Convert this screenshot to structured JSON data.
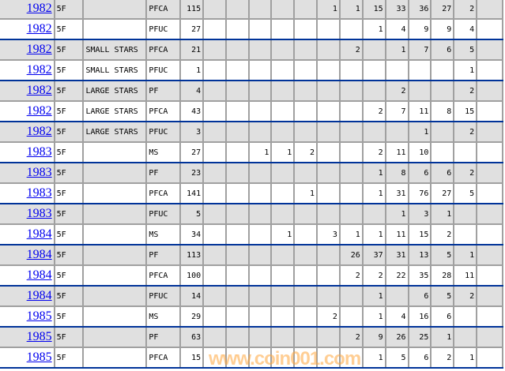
{
  "watermark": "www.coin001.com",
  "colors": {
    "link": "#0000ee",
    "row_alt": "#e0e0e0",
    "separator": "#003399",
    "grid": "#a0a0a0",
    "watermark": "#ffa53c"
  },
  "rows": [
    {
      "year": "1982",
      "denom": "5F",
      "variety": "",
      "grade": "PFCA",
      "total": "115",
      "counts": [
        "",
        "",
        "",
        "",
        "",
        "1",
        "1",
        "15",
        "33",
        "36",
        "27",
        "2",
        ""
      ]
    },
    {
      "year": "1982",
      "denom": "5F",
      "variety": "",
      "grade": "PFUC",
      "total": "27",
      "counts": [
        "",
        "",
        "",
        "",
        "",
        "",
        "",
        "1",
        "4",
        "9",
        "9",
        "4",
        ""
      ]
    },
    {
      "year": "1982",
      "denom": "5F",
      "variety": "SMALL STARS",
      "grade": "PFCA",
      "total": "21",
      "counts": [
        "",
        "",
        "",
        "",
        "",
        "",
        "2",
        "",
        "1",
        "7",
        "6",
        "5",
        ""
      ]
    },
    {
      "year": "1982",
      "denom": "5F",
      "variety": "SMALL STARS",
      "grade": "PFUC",
      "total": "1",
      "counts": [
        "",
        "",
        "",
        "",
        "",
        "",
        "",
        "",
        "",
        "",
        "",
        "1",
        ""
      ]
    },
    {
      "year": "1982",
      "denom": "5F",
      "variety": "LARGE STARS",
      "grade": "PF",
      "total": "4",
      "counts": [
        "",
        "",
        "",
        "",
        "",
        "",
        "",
        "",
        "2",
        "",
        "",
        "2",
        ""
      ]
    },
    {
      "year": "1982",
      "denom": "5F",
      "variety": "LARGE STARS",
      "grade": "PFCA",
      "total": "43",
      "counts": [
        "",
        "",
        "",
        "",
        "",
        "",
        "",
        "2",
        "7",
        "11",
        "8",
        "15",
        ""
      ]
    },
    {
      "year": "1982",
      "denom": "5F",
      "variety": "LARGE STARS",
      "grade": "PFUC",
      "total": "3",
      "counts": [
        "",
        "",
        "",
        "",
        "",
        "",
        "",
        "",
        "",
        "1",
        "",
        "2",
        ""
      ]
    },
    {
      "year": "1983",
      "denom": "5F",
      "variety": "",
      "grade": "MS",
      "total": "27",
      "counts": [
        "",
        "",
        "1",
        "1",
        "2",
        "",
        "",
        "2",
        "11",
        "10",
        "",
        "",
        ""
      ]
    },
    {
      "year": "1983",
      "denom": "5F",
      "variety": "",
      "grade": "PF",
      "total": "23",
      "counts": [
        "",
        "",
        "",
        "",
        "",
        "",
        "",
        "1",
        "8",
        "6",
        "6",
        "2",
        ""
      ]
    },
    {
      "year": "1983",
      "denom": "5F",
      "variety": "",
      "grade": "PFCA",
      "total": "141",
      "counts": [
        "",
        "",
        "",
        "",
        "1",
        "",
        "",
        "1",
        "31",
        "76",
        "27",
        "5",
        ""
      ]
    },
    {
      "year": "1983",
      "denom": "5F",
      "variety": "",
      "grade": "PFUC",
      "total": "5",
      "counts": [
        "",
        "",
        "",
        "",
        "",
        "",
        "",
        "",
        "1",
        "3",
        "1",
        "",
        ""
      ]
    },
    {
      "year": "1984",
      "denom": "5F",
      "variety": "",
      "grade": "MS",
      "total": "34",
      "counts": [
        "",
        "",
        "",
        "1",
        "",
        "3",
        "1",
        "1",
        "11",
        "15",
        "2",
        "",
        ""
      ]
    },
    {
      "year": "1984",
      "denom": "5F",
      "variety": "",
      "grade": "PF",
      "total": "113",
      "counts": [
        "",
        "",
        "",
        "",
        "",
        "",
        "26",
        "37",
        "31",
        "13",
        "5",
        "1",
        ""
      ]
    },
    {
      "year": "1984",
      "denom": "5F",
      "variety": "",
      "grade": "PFCA",
      "total": "100",
      "counts": [
        "",
        "",
        "",
        "",
        "",
        "",
        "2",
        "2",
        "22",
        "35",
        "28",
        "11",
        ""
      ]
    },
    {
      "year": "1984",
      "denom": "5F",
      "variety": "",
      "grade": "PFUC",
      "total": "14",
      "counts": [
        "",
        "",
        "",
        "",
        "",
        "",
        "",
        "1",
        "",
        "6",
        "5",
        "2",
        ""
      ]
    },
    {
      "year": "1985",
      "denom": "5F",
      "variety": "",
      "grade": "MS",
      "total": "29",
      "counts": [
        "",
        "",
        "",
        "",
        "",
        "2",
        "",
        "1",
        "4",
        "16",
        "6",
        "",
        ""
      ]
    },
    {
      "year": "1985",
      "denom": "5F",
      "variety": "",
      "grade": "PF",
      "total": "63",
      "counts": [
        "",
        "",
        "",
        "",
        "",
        "",
        "2",
        "9",
        "26",
        "25",
        "1",
        "",
        ""
      ]
    },
    {
      "year": "1985",
      "denom": "5F",
      "variety": "",
      "grade": "PFCA",
      "total": "15",
      "counts": [
        "",
        "",
        "",
        "",
        "",
        "",
        "",
        "1",
        "5",
        "6",
        "2",
        "1",
        ""
      ]
    }
  ]
}
